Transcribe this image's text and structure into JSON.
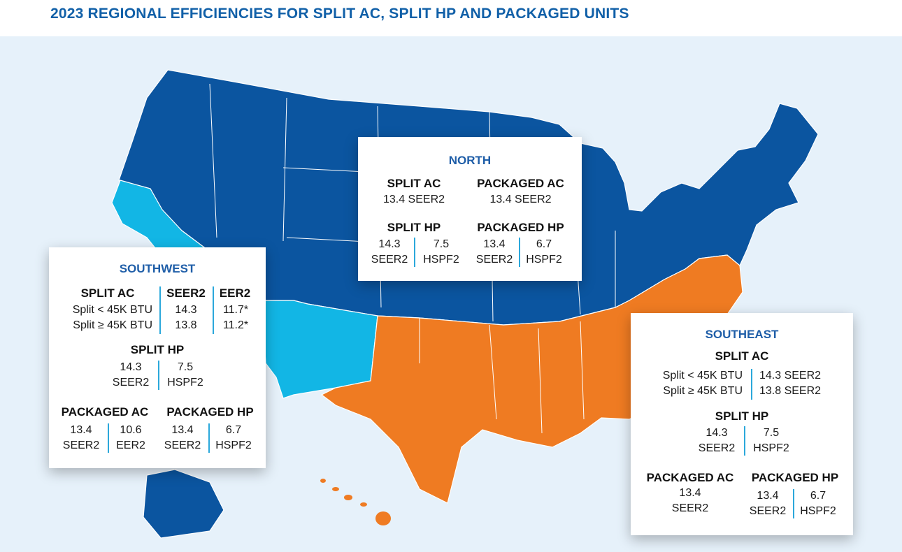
{
  "title": "2023 REGIONAL EFFICIENCIES FOR SPLIT AC, SPLIT HP AND PACKAGED UNITS",
  "colors": {
    "north": "#0b55a0",
    "southwest": "#12b6e5",
    "southeast": "#ef7b22",
    "background": "#e6f1fa",
    "title": "#1160a8",
    "divider": "#2ba8db"
  },
  "north": {
    "name": "NORTH",
    "split_ac": {
      "label": "SPLIT AC",
      "value": "13.4 SEER2"
    },
    "packaged_ac": {
      "label": "PACKAGED AC",
      "value": "13.4 SEER2"
    },
    "split_hp": {
      "label": "SPLIT HP",
      "v1": "14.3",
      "u1": "SEER2",
      "v2": "7.5",
      "u2": "HSPF2"
    },
    "packaged_hp": {
      "label": "PACKAGED HP",
      "v1": "13.4",
      "u1": "SEER2",
      "v2": "6.7",
      "u2": "HSPF2"
    }
  },
  "southwest": {
    "name": "SOUTHWEST",
    "split_ac": {
      "label": "SPLIT AC",
      "col1": "SEER2",
      "col2": "EER2",
      "rows": [
        {
          "label": "Split < 45K BTU",
          "seer2": "14.3",
          "eer2": "11.7*"
        },
        {
          "label": "Split ≥ 45K BTU",
          "seer2": "13.8",
          "eer2": "11.2*"
        }
      ]
    },
    "split_hp": {
      "label": "SPLIT HP",
      "v1": "14.3",
      "u1": "SEER2",
      "v2": "7.5",
      "u2": "HSPF2"
    },
    "packaged_ac": {
      "label": "PACKAGED AC",
      "v1": "13.4",
      "u1": "SEER2",
      "v2": "10.6",
      "u2": "EER2"
    },
    "packaged_hp": {
      "label": "PACKAGED HP",
      "v1": "13.4",
      "u1": "SEER2",
      "v2": "6.7",
      "u2": "HSPF2"
    }
  },
  "southeast": {
    "name": "SOUTHEAST",
    "split_ac": {
      "label": "SPLIT AC",
      "rows": [
        {
          "label": "Split < 45K BTU",
          "value": "14.3 SEER2"
        },
        {
          "label": "Split ≥ 45K BTU",
          "value": "13.8 SEER2"
        }
      ]
    },
    "split_hp": {
      "label": "SPLIT HP",
      "v1": "14.3",
      "u1": "SEER2",
      "v2": "7.5",
      "u2": "HSPF2"
    },
    "packaged_ac": {
      "label": "PACKAGED AC",
      "v1": "13.4",
      "u1": "SEER2"
    },
    "packaged_hp": {
      "label": "PACKAGED HP",
      "v1": "13.4",
      "u1": "SEER2",
      "v2": "6.7",
      "u2": "HSPF2"
    }
  }
}
